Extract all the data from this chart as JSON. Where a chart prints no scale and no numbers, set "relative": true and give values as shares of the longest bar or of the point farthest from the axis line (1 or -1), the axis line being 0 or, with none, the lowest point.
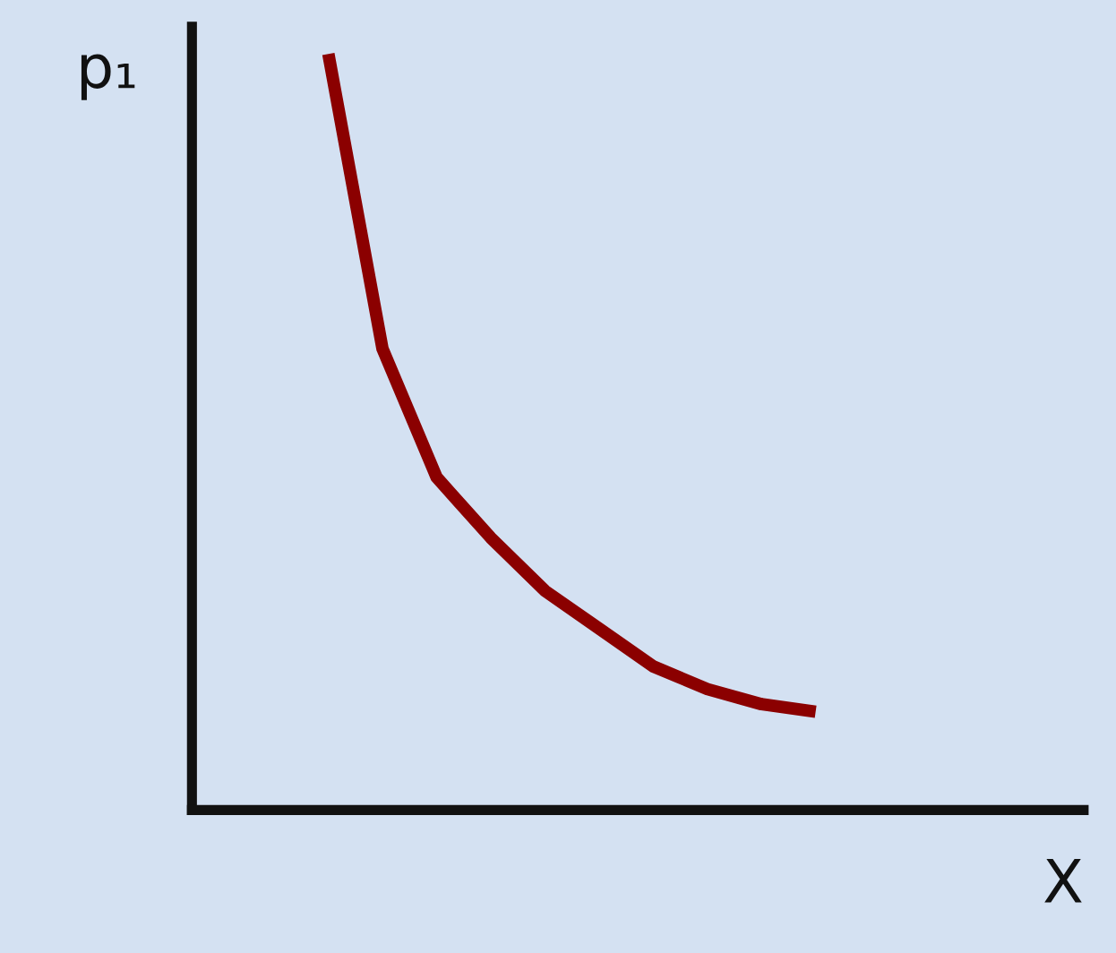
{
  "chart_data": {
    "type": "line",
    "relative": true,
    "xlabel": "X",
    "ylabel": "p₁",
    "categories": [
      null,
      null,
      null,
      null,
      null,
      null,
      null,
      null,
      null,
      null
    ],
    "series": [
      {
        "color": "#8b0000",
        "values": [
          1,
          0.61,
          0.44,
          0.36,
          0.29,
          0.24,
          0.19,
          0.16,
          0.14,
          0.13
        ]
      }
    ],
    "grid": false,
    "legend": false,
    "marker": "none",
    "line_style": "solid"
  }
}
